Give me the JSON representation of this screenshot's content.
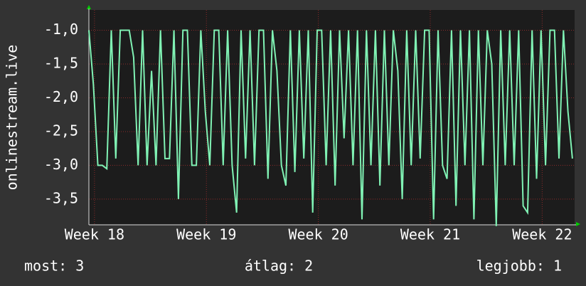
{
  "chart_data": {
    "type": "line",
    "y_label": "onlinestream.live",
    "x": [
      17.95,
      17.99,
      18.03,
      18.07,
      18.11,
      18.15,
      18.19,
      18.23,
      18.27,
      18.31,
      18.35,
      18.39,
      18.43,
      18.47,
      18.51,
      18.55,
      18.59,
      18.63,
      18.67,
      18.71,
      18.75,
      18.79,
      18.83,
      18.87,
      18.91,
      18.95,
      18.99,
      19.03,
      19.07,
      19.11,
      19.15,
      19.19,
      19.23,
      19.27,
      19.31,
      19.35,
      19.39,
      19.43,
      19.47,
      19.51,
      19.55,
      19.59,
      19.63,
      19.67,
      19.71,
      19.75,
      19.79,
      19.83,
      19.87,
      19.91,
      19.95,
      19.99,
      20.03,
      20.07,
      20.11,
      20.15,
      20.19,
      20.23,
      20.27,
      20.31,
      20.35,
      20.39,
      20.43,
      20.47,
      20.51,
      20.55,
      20.59,
      20.63,
      20.67,
      20.71,
      20.75,
      20.79,
      20.83,
      20.87,
      20.91,
      20.95,
      20.99,
      21.03,
      21.07,
      21.11,
      21.15,
      21.19,
      21.23,
      21.27,
      21.31,
      21.35,
      21.39,
      21.43,
      21.47,
      21.51,
      21.55,
      21.59,
      21.63,
      21.67,
      21.71,
      21.75,
      21.79,
      21.83,
      21.87,
      21.91,
      21.95,
      21.99,
      22.03,
      22.07,
      22.11,
      22.15,
      22.19,
      22.23,
      22.27
    ],
    "series": [
      {
        "color": "#80f2b4",
        "values": [
          -1,
          -1.8,
          -3,
          -3,
          -3.05,
          -1,
          -2.9,
          -1,
          -1,
          -1,
          -1.4,
          -3,
          -1,
          -3,
          -1.6,
          -3,
          -1,
          -2.9,
          -2.9,
          -1,
          -3.5,
          -1,
          -1,
          -3,
          -3,
          -1,
          -2.2,
          -3,
          -1,
          -1,
          -3,
          -1,
          -3,
          -3.7,
          -1,
          -2.9,
          -1,
          -3,
          -1,
          -1,
          -3.2,
          -1,
          -1.6,
          -3,
          -3.3,
          -1,
          -3.1,
          -1,
          -2.9,
          -1,
          -3.7,
          -1,
          -1,
          -3,
          -1,
          -3.3,
          -1,
          -2.6,
          -1,
          -3,
          -1,
          -3.8,
          -1,
          -3,
          -1,
          -3.3,
          -1,
          -3,
          -1,
          -1.6,
          -3.5,
          -1,
          -3,
          -1,
          -2.9,
          -1,
          -1,
          -3.8,
          -1,
          -3,
          -3.2,
          -1,
          -3.6,
          -1,
          -3,
          -1,
          -3.8,
          -1,
          -3,
          -1,
          -1.5,
          -3.9,
          -1,
          -3,
          -1,
          -3,
          -1,
          -3.6,
          -3.7,
          -1,
          -3.2,
          -1,
          -3,
          -1,
          -1,
          -2.9,
          -1,
          -2.2,
          -2.9
        ]
      }
    ],
    "xlim": [
      17.95,
      22.29
    ],
    "xticks": [
      {
        "value": 18,
        "label": "Week 18"
      },
      {
        "value": 19,
        "label": "Week 19"
      },
      {
        "value": 20,
        "label": "Week 20"
      },
      {
        "value": 21,
        "label": "Week 21"
      },
      {
        "value": 22,
        "label": "Week 22"
      }
    ],
    "ylim": [
      -3.88,
      -0.7
    ],
    "yticks": [
      {
        "value": -1.0,
        "label": "-1,0"
      },
      {
        "value": -1.5,
        "label": "-1,5"
      },
      {
        "value": -2.0,
        "label": "-2,0"
      },
      {
        "value": -2.5,
        "label": "-2,5"
      },
      {
        "value": -3.0,
        "label": "-3,0"
      },
      {
        "value": -3.5,
        "label": "-3,5"
      }
    ],
    "grid": true,
    "footer": [
      "most: 3",
      "átlag: 2",
      "legjobb: 1"
    ]
  }
}
